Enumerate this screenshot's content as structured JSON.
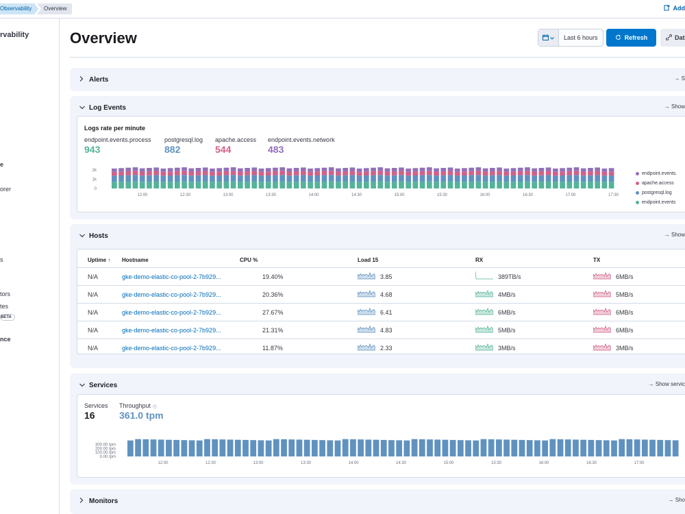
{
  "breadcrumbs": [
    "Observability",
    "Overview"
  ],
  "top_right_label": "Add",
  "sidebar": {
    "title": "rvability",
    "items": [
      "e",
      "orer",
      "s",
      "tors",
      "tes",
      "nce"
    ],
    "beta_label": "BETA"
  },
  "page": {
    "title": "Overview",
    "date_range": "Last 6 hours",
    "refresh_label": "Refresh",
    "data_label": "Dat"
  },
  "sections": {
    "alerts": {
      "title": "Alerts",
      "link": "S"
    },
    "logs": {
      "title": "Log Events",
      "link": "Show"
    },
    "hosts": {
      "title": "Hosts",
      "link": "Show"
    },
    "services": {
      "title": "Services",
      "link": "Show servic"
    },
    "monitors": {
      "title": "Monitors",
      "link": "Sho"
    }
  },
  "logs": {
    "panel_title": "Logs rate per minute",
    "stats": [
      {
        "label": "endpoint.events.process",
        "value": "943",
        "color": "#54b399"
      },
      {
        "label": "postgresql.log",
        "value": "882",
        "color": "#6092c0"
      },
      {
        "label": "apache.access",
        "value": "544",
        "color": "#d36086"
      },
      {
        "label": "endpoint.events.network",
        "value": "483",
        "color": "#9170b8"
      }
    ],
    "legend": [
      {
        "label": "endpoint.events.",
        "color": "#9170b8"
      },
      {
        "label": "apache.access",
        "color": "#d36086"
      },
      {
        "label": "postgresql.log",
        "color": "#6092c0"
      },
      {
        "label": "endpoint.events",
        "color": "#54b399"
      }
    ]
  },
  "hosts": {
    "columns": [
      "Uptime ↑",
      "Hostname",
      "CPU %",
      "Load 15",
      "RX",
      "TX"
    ],
    "rows": [
      {
        "uptime": "N/A",
        "hostname": "gke-demo-elastic-co-pool-2-7b929...",
        "cpu": "19.40%",
        "load": "3.85",
        "rx": "389TB/s",
        "tx": "6MB/s"
      },
      {
        "uptime": "N/A",
        "hostname": "gke-demo-elastic-co-pool-2-7b929...",
        "cpu": "20.36%",
        "load": "4.68",
        "rx": "4MB/s",
        "tx": "5MB/s"
      },
      {
        "uptime": "N/A",
        "hostname": "gke-demo-elastic-co-pool-2-7b929...",
        "cpu": "27.67%",
        "load": "6.41",
        "rx": "6MB/s",
        "tx": "6MB/s"
      },
      {
        "uptime": "N/A",
        "hostname": "gke-demo-elastic-co-pool-2-7b929...",
        "cpu": "21.31%",
        "load": "4.83",
        "rx": "5MB/s",
        "tx": "6MB/s"
      },
      {
        "uptime": "N/A",
        "hostname": "gke-demo-elastic-co-pool-2-7b929...",
        "cpu": "11.87%",
        "load": "2.33",
        "rx": "3MB/s",
        "tx": "3MB/s"
      }
    ]
  },
  "services": {
    "services_label": "Services",
    "services_value": "16",
    "throughput_label": "Throughput",
    "throughput_value": "361.0 tpm"
  },
  "chart_data": [
    {
      "type": "bar",
      "title": "Logs rate per minute",
      "stacked": true,
      "x_ticks": [
        "12:00",
        "12:30",
        "13:00",
        "13:30",
        "14:00",
        "14:30",
        "15:00",
        "15:30",
        "16:00",
        "16:30",
        "17:00",
        "17:30"
      ],
      "y_ticks": [
        "0",
        "1k",
        "2k"
      ],
      "bars": 72,
      "series": [
        {
          "name": "endpoint.events.process",
          "color": "#54b399",
          "value": 943
        },
        {
          "name": "postgresql.log",
          "color": "#6092c0",
          "value": 882
        },
        {
          "name": "apache.access",
          "color": "#d36086",
          "value": 544
        },
        {
          "name": "endpoint.events.network",
          "color": "#9170b8",
          "value": 483
        }
      ]
    },
    {
      "type": "bar",
      "title": "Throughput",
      "x_ticks": [
        "12:00",
        "12:30",
        "13:00",
        "13:30",
        "14:00",
        "14:30",
        "15:00",
        "15:30",
        "16:00",
        "16:30",
        "17:00",
        "17:30"
      ],
      "y_ticks": [
        "0.00 tpm",
        "100.00 tpm",
        "200.00 tpm",
        "300.00 tpm"
      ],
      "ylim": [
        0,
        300
      ],
      "bars": 72,
      "value": 361.0,
      "color": "#6092c0"
    }
  ]
}
